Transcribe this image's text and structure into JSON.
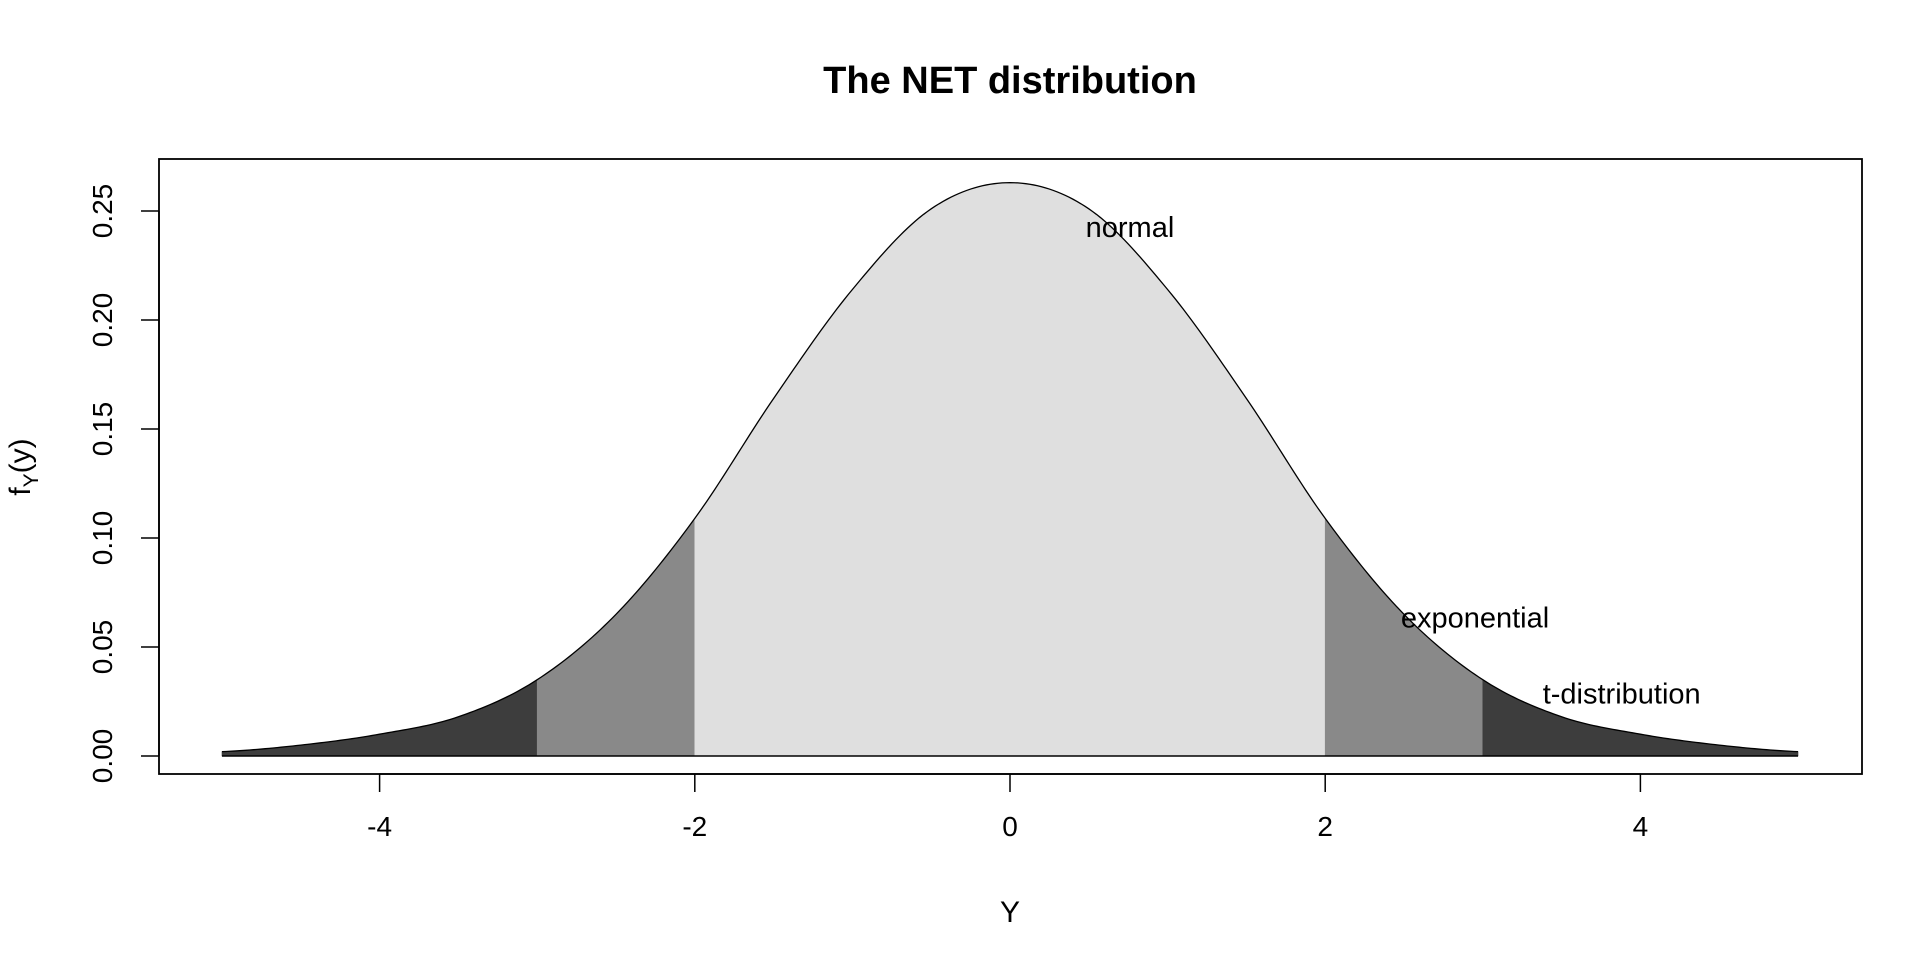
{
  "chart_data": {
    "type": "area",
    "title": "The NET distribution",
    "xlabel": "Y",
    "ylabel": "f",
    "ylabel_sub": "Y",
    "ylabel_arg": "(y)",
    "xlim": [
      -5,
      5
    ],
    "ylim": [
      0,
      0.26
    ],
    "x_ticks": [
      -4,
      -2,
      0,
      2,
      4
    ],
    "x_tick_labels": [
      "-4",
      "-2",
      "0",
      "2",
      "4"
    ],
    "y_ticks": [
      0,
      0.05,
      0.1,
      0.15,
      0.2,
      0.25
    ],
    "y_tick_labels": [
      "0.00",
      "0.05",
      "0.10",
      "0.15",
      "0.20",
      "0.25"
    ],
    "grid": false,
    "legend": "none",
    "curve": {
      "x": [
        -5,
        -4.5,
        -4,
        -3.5,
        -3,
        -2.5,
        -2,
        -1.5,
        -1,
        -0.5,
        0,
        0.5,
        1,
        1.5,
        2,
        2.5,
        3,
        3.5,
        4,
        4.5,
        5
      ],
      "y": [
        0.002,
        0.005,
        0.01,
        0.018,
        0.035,
        0.065,
        0.109,
        0.164,
        0.214,
        0.251,
        0.263,
        0.251,
        0.214,
        0.164,
        0.109,
        0.065,
        0.035,
        0.018,
        0.01,
        0.005,
        0.002
      ]
    },
    "regions": [
      {
        "from": -5,
        "to": -3,
        "color": "#3d3d3d"
      },
      {
        "from": -3,
        "to": -2,
        "color": "#898989"
      },
      {
        "from": -2,
        "to": 2,
        "color": "#dfdfdf"
      },
      {
        "from": 2,
        "to": 3,
        "color": "#898989"
      },
      {
        "from": 3,
        "to": 5,
        "color": "#3d3d3d"
      }
    ],
    "annotations": [
      {
        "text": "normal",
        "x": 0.48,
        "y": 0.238
      },
      {
        "text": "exponential",
        "x": 2.48,
        "y": 0.059
      },
      {
        "text": "t-distribution",
        "x": 3.38,
        "y": 0.024
      }
    ]
  }
}
